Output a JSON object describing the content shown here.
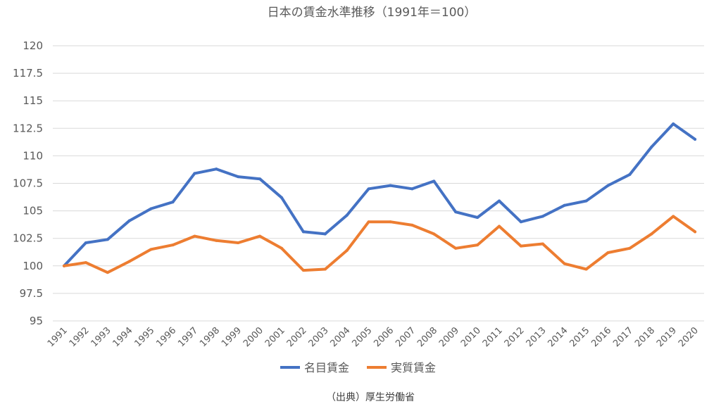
{
  "chart_data": {
    "type": "line",
    "title": "日本の賃金水準推移（1991年＝100）",
    "ylim": [
      95,
      120
    ],
    "yticks": [
      95,
      97.5,
      100,
      102.5,
      105,
      107.5,
      110,
      112.5,
      115,
      117.5,
      120
    ],
    "ytick_labels": [
      "95",
      "97.5",
      "100",
      "102.5",
      "105",
      "107.5",
      "110",
      "112.5",
      "115",
      "117.5",
      "120"
    ],
    "categories": [
      "1991",
      "1992",
      "1993",
      "1994",
      "1995",
      "1996",
      "1997",
      "1998",
      "1999",
      "2000",
      "2001",
      "2002",
      "2003",
      "2004",
      "2005",
      "2006",
      "2007",
      "2008",
      "2009",
      "2010",
      "2011",
      "2012",
      "2013",
      "2014",
      "2015",
      "2016",
      "2017",
      "2018",
      "2019",
      "2020"
    ],
    "series": [
      {
        "name": "名目賃金",
        "color": "#4472c4",
        "values": [
          100,
          102.1,
          102.4,
          104.1,
          105.2,
          105.8,
          108.4,
          108.8,
          108.1,
          107.9,
          106.2,
          103.1,
          102.9,
          104.6,
          107.0,
          107.3,
          107.0,
          107.7,
          104.9,
          104.4,
          105.9,
          104.0,
          104.5,
          105.5,
          105.9,
          107.3,
          108.3,
          110.8,
          112.9,
          111.5
        ]
      },
      {
        "name": "実質賃金",
        "color": "#ed7d31",
        "values": [
          100,
          100.3,
          99.4,
          100.4,
          101.5,
          101.9,
          102.7,
          102.3,
          102.1,
          102.7,
          101.6,
          99.6,
          99.7,
          101.4,
          104.0,
          104.0,
          103.7,
          102.9,
          101.6,
          101.9,
          103.6,
          101.8,
          102.0,
          100.2,
          99.7,
          101.2,
          101.6,
          102.9,
          104.5,
          103.1
        ]
      }
    ],
    "grid": true,
    "legend_position": "bottom",
    "source_note": "（出典）厚生労働省"
  }
}
